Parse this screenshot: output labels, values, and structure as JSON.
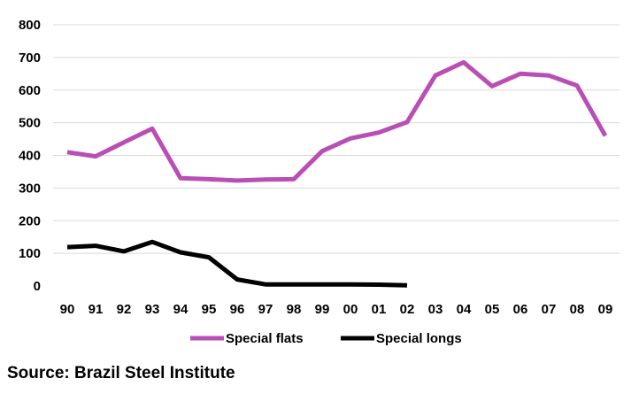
{
  "chart_data": {
    "type": "line",
    "title": "",
    "xlabel": "",
    "ylabel": "",
    "categories": [
      "90",
      "91",
      "92",
      "93",
      "94",
      "95",
      "96",
      "97",
      "98",
      "99",
      "00",
      "01",
      "02",
      "03",
      "04",
      "05",
      "06",
      "07",
      "08",
      "09"
    ],
    "ylim": [
      0,
      800
    ],
    "yticks": [
      0,
      100,
      200,
      300,
      400,
      500,
      600,
      700,
      800
    ],
    "grid": true,
    "legend_position": "bottom",
    "series": [
      {
        "name": "Special flats",
        "color": "#b94fb4",
        "values": [
          410,
          397,
          440,
          482,
          330,
          327,
          323,
          326,
          327,
          413,
          452,
          470,
          502,
          645,
          685,
          612,
          650,
          645,
          614,
          460
        ]
      },
      {
        "name": "Special longs",
        "color": "#000000",
        "values": [
          119,
          123,
          106,
          135,
          103,
          88,
          20,
          5,
          5,
          5,
          5,
          4,
          2,
          null,
          null,
          null,
          null,
          null,
          null,
          null
        ]
      }
    ]
  },
  "source": "Source: Brazil Steel Institute"
}
